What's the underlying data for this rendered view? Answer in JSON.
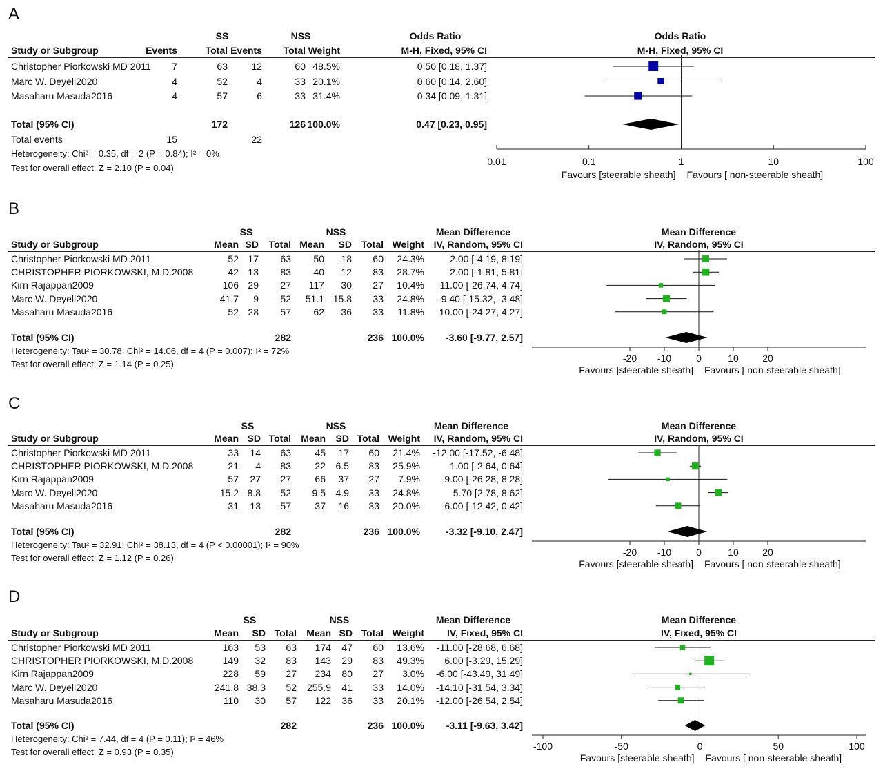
{
  "chart_data": [
    {
      "panel": "A",
      "type": "forest",
      "measure": "odds-ratio",
      "scale": "log",
      "group_headers": {
        "ss": "SS",
        "nss": "NSS"
      },
      "columns": [
        "Study or Subgroup",
        "Events",
        "Total",
        "Events",
        "Total",
        "Weight"
      ],
      "effect_header": "Odds Ratio",
      "effect_method": "M-H, Fixed, 95% CI",
      "plot_header": "Odds Ratio",
      "plot_method": "M-H, Fixed, 95% CI",
      "studies": [
        {
          "name": "Christopher Piorkowski MD 2011",
          "cells": [
            "7",
            "63",
            "12",
            "60",
            "48.5%"
          ],
          "ci_text": "0.50 [0.18, 1.37]",
          "est": 0.5,
          "lo": 0.18,
          "hi": 1.37,
          "weight": 48.5
        },
        {
          "name": "Marc W. Deyell2020",
          "cells": [
            "4",
            "52",
            "4",
            "33",
            "20.1%"
          ],
          "ci_text": "0.60 [0.14, 2.60]",
          "est": 0.6,
          "lo": 0.14,
          "hi": 2.6,
          "weight": 20.1
        },
        {
          "name": "Masaharu Masuda2016",
          "cells": [
            "4",
            "57",
            "6",
            "33",
            "31.4%"
          ],
          "ci_text": "0.34 [0.09, 1.31]",
          "est": 0.34,
          "lo": 0.09,
          "hi": 1.31,
          "weight": 31.4
        }
      ],
      "total": {
        "label": "Total (95% CI)",
        "cells": [
          "",
          "172",
          "",
          "126",
          "100.0%"
        ],
        "ci_text": "0.47 [0.23, 0.95]",
        "est": 0.47,
        "lo": 0.23,
        "hi": 0.95
      },
      "total_events": {
        "label": "Total events",
        "ss": "15",
        "nss": "22"
      },
      "heterogeneity": "Heterogeneity: Chi² = 0.35, df = 2 (P = 0.84); I² = 0%",
      "overall_effect": "Test for overall effect: Z = 2.10 (P = 0.04)",
      "axis": {
        "ticks": [
          0.01,
          0.1,
          1,
          10,
          100
        ],
        "tick_labels": [
          "0.01",
          "0.1",
          "1",
          "10",
          "100"
        ],
        "xlim": [
          0.01,
          100
        ]
      },
      "favours_left": "Favours [steerable sheath]",
      "favours_right": "Favours [ non-steerable sheath]",
      "marker_color": "#0000a0"
    },
    {
      "panel": "B",
      "type": "forest",
      "measure": "mean-difference",
      "scale": "linear",
      "group_headers": {
        "ss": "SS",
        "nss": "NSS"
      },
      "columns": [
        "Study or Subgroup",
        "Mean",
        "SD",
        "Total",
        "Mean",
        "SD",
        "Total",
        "Weight"
      ],
      "effect_header": "Mean Difference",
      "effect_method": "IV, Random, 95% CI",
      "plot_header": "Mean Difference",
      "plot_method": "IV, Random, 95% CI",
      "studies": [
        {
          "name": "Christopher Piorkowski MD 2011",
          "cells": [
            "52",
            "17",
            "63",
            "50",
            "18",
            "60",
            "24.3%"
          ],
          "ci_text": "2.00 [-4.19, 8.19]",
          "est": 2.0,
          "lo": -4.19,
          "hi": 8.19,
          "weight": 24.3
        },
        {
          "name": "CHRISTOPHER PIORKOWSKI, M.D.2008",
          "cells": [
            "42",
            "13",
            "83",
            "40",
            "12",
            "83",
            "28.7%"
          ],
          "ci_text": "2.00 [-1.81, 5.81]",
          "est": 2.0,
          "lo": -1.81,
          "hi": 5.81,
          "weight": 28.7
        },
        {
          "name": "Kirn Rajappan2009",
          "cells": [
            "106",
            "29",
            "27",
            "117",
            "30",
            "27",
            "10.4%"
          ],
          "ci_text": "-11.00 [-26.74, 4.74]",
          "est": -11.0,
          "lo": -26.74,
          "hi": 4.74,
          "weight": 10.4
        },
        {
          "name": "Marc W. Deyell2020",
          "cells": [
            "41.7",
            "9",
            "52",
            "51.1",
            "15.8",
            "33",
            "24.8%"
          ],
          "ci_text": "-9.40 [-15.32, -3.48]",
          "est": -9.4,
          "lo": -15.32,
          "hi": -3.48,
          "weight": 24.8
        },
        {
          "name": "Masaharu Masuda2016",
          "cells": [
            "52",
            "28",
            "57",
            "62",
            "36",
            "33",
            "11.8%"
          ],
          "ci_text": "-10.00 [-24.27, 4.27]",
          "est": -10.0,
          "lo": -24.27,
          "hi": 4.27,
          "weight": 11.8
        }
      ],
      "total": {
        "label": "Total (95% CI)",
        "cells": [
          "",
          "",
          "282",
          "",
          "",
          "236",
          "100.0%"
        ],
        "ci_text": "-3.60 [-9.77, 2.57]",
        "est": -3.6,
        "lo": -9.77,
        "hi": 2.57
      },
      "heterogeneity": "Heterogeneity: Tau² = 30.78; Chi² = 14.06, df = 4 (P = 0.007); I² = 72%",
      "overall_effect": "Test for overall effect: Z = 1.14 (P = 0.25)",
      "axis": {
        "ticks": [
          -20,
          -10,
          0,
          10,
          20
        ],
        "tick_labels": [
          "-20",
          "-10",
          "0",
          "10",
          "20"
        ],
        "xlim": [
          -50,
          50
        ]
      },
      "favours_left": "Favours [steerable sheath]",
      "favours_right": "Favours [ non-steerable sheath]",
      "marker_color": "#22b022"
    },
    {
      "panel": "C",
      "type": "forest",
      "measure": "mean-difference",
      "scale": "linear",
      "group_headers": {
        "ss": "SS",
        "nss": "NSS"
      },
      "columns": [
        "Study or Subgroup",
        "Mean",
        "SD",
        "Total",
        "Mean",
        "SD",
        "Total",
        "Weight"
      ],
      "effect_header": "Mean Difference",
      "effect_method": "IV, Random, 95% CI",
      "plot_header": "Mean Difference",
      "plot_method": "IV, Random, 95% CI",
      "studies": [
        {
          "name": "Christopher Piorkowski MD 2011",
          "cells": [
            "33",
            "14",
            "63",
            "45",
            "17",
            "60",
            "21.4%"
          ],
          "ci_text": "-12.00 [-17.52, -6.48]",
          "est": -12.0,
          "lo": -17.52,
          "hi": -6.48,
          "weight": 21.4
        },
        {
          "name": "CHRISTOPHER PIORKOWSKI, M.D.2008",
          "cells": [
            "21",
            "4",
            "83",
            "22",
            "6.5",
            "83",
            "25.9%"
          ],
          "ci_text": "-1.00 [-2.64, 0.64]",
          "est": -1.0,
          "lo": -2.64,
          "hi": 0.64,
          "weight": 25.9
        },
        {
          "name": "Kirn Rajappan2009",
          "cells": [
            "57",
            "27",
            "27",
            "66",
            "37",
            "27",
            "7.9%"
          ],
          "ci_text": "-9.00 [-26.28, 8.28]",
          "est": -9.0,
          "lo": -26.28,
          "hi": 8.28,
          "weight": 7.9
        },
        {
          "name": "Marc W. Deyell2020",
          "cells": [
            "15.2",
            "8.8",
            "52",
            "9.5",
            "4.9",
            "33",
            "24.8%"
          ],
          "ci_text": "5.70 [2.78, 8.62]",
          "est": 5.7,
          "lo": 2.78,
          "hi": 8.62,
          "weight": 24.8
        },
        {
          "name": "Masaharu Masuda2016",
          "cells": [
            "31",
            "13",
            "57",
            "37",
            "16",
            "33",
            "20.0%"
          ],
          "ci_text": "-6.00 [-12.42, 0.42]",
          "est": -6.0,
          "lo": -12.42,
          "hi": 0.42,
          "weight": 20.0
        }
      ],
      "total": {
        "label": "Total (95% CI)",
        "cells": [
          "",
          "",
          "282",
          "",
          "",
          "236",
          "100.0%"
        ],
        "ci_text": "-3.32 [-9.10, 2.47]",
        "est": -3.32,
        "lo": -9.1,
        "hi": 2.47
      },
      "heterogeneity": "Heterogeneity: Tau² = 32.91; Chi² = 38.13, df = 4 (P < 0.00001); I² = 90%",
      "overall_effect": "Test for overall effect: Z = 1.12 (P = 0.26)",
      "axis": {
        "ticks": [
          -20,
          -10,
          0,
          10,
          20
        ],
        "tick_labels": [
          "-20",
          "-10",
          "0",
          "10",
          "20"
        ],
        "xlim": [
          -50,
          50
        ]
      },
      "favours_left": "Favours [steerable sheath]",
      "favours_right": "Favours [ non-steerable sheath]",
      "marker_color": "#22b022"
    },
    {
      "panel": "D",
      "type": "forest",
      "measure": "mean-difference",
      "scale": "linear",
      "group_headers": {
        "ss": "SS",
        "nss": "NSS"
      },
      "columns": [
        "Study or Subgroup",
        "Mean",
        "SD",
        "Total",
        "Mean",
        "SD",
        "Total",
        "Weight"
      ],
      "effect_header": "Mean Difference",
      "effect_method": "IV, Fixed, 95% CI",
      "plot_header": "Mean Difference",
      "plot_method": "IV, Fixed, 95% CI",
      "studies": [
        {
          "name": "Christopher Piorkowski MD 2011",
          "cells": [
            "163",
            "53",
            "63",
            "174",
            "47",
            "60",
            "13.6%"
          ],
          "ci_text": "-11.00 [-28.68, 6.68]",
          "est": -11.0,
          "lo": -28.68,
          "hi": 6.68,
          "weight": 13.6
        },
        {
          "name": "CHRISTOPHER PIORKOWSKI, M.D.2008",
          "cells": [
            "149",
            "32",
            "83",
            "143",
            "29",
            "83",
            "49.3%"
          ],
          "ci_text": "6.00 [-3.29, 15.29]",
          "est": 6.0,
          "lo": -3.29,
          "hi": 15.29,
          "weight": 49.3
        },
        {
          "name": "Kirn Rajappan2009",
          "cells": [
            "228",
            "59",
            "27",
            "234",
            "80",
            "27",
            "3.0%"
          ],
          "ci_text": "-6.00 [-43.49, 31.49]",
          "est": -6.0,
          "lo": -43.49,
          "hi": 31.49,
          "weight": 3.0
        },
        {
          "name": "Marc W. Deyell2020",
          "cells": [
            "241.8",
            "38.3",
            "52",
            "255.9",
            "41",
            "33",
            "14.0%"
          ],
          "ci_text": "-14.10 [-31.54, 3.34]",
          "est": -14.1,
          "lo": -31.54,
          "hi": 3.34,
          "weight": 14.0
        },
        {
          "name": "Masaharu Masuda2016",
          "cells": [
            "110",
            "30",
            "57",
            "122",
            "36",
            "33",
            "20.1%"
          ],
          "ci_text": "-12.00 [-26.54, 2.54]",
          "est": -12.0,
          "lo": -26.54,
          "hi": 2.54,
          "weight": 20.1
        }
      ],
      "total": {
        "label": "Total (95% CI)",
        "cells": [
          "",
          "",
          "282",
          "",
          "",
          "236",
          "100.0%"
        ],
        "ci_text": "-3.11 [-9.63, 3.42]",
        "est": -3.11,
        "lo": -9.63,
        "hi": 3.42
      },
      "heterogeneity": "Heterogeneity: Chi² = 7.44, df = 4 (P = 0.11); I² = 46%",
      "overall_effect": "Test for overall effect: Z = 0.93 (P = 0.35)",
      "axis": {
        "ticks": [
          -100,
          -50,
          0,
          50,
          100
        ],
        "tick_labels": [
          "-100",
          "-50",
          "0",
          "50",
          "100"
        ],
        "xlim": [
          -100,
          100
        ]
      },
      "favours_left": "Favours [steerable sheath]",
      "favours_right": "Favours [ non-steerable sheath]",
      "marker_color": "#22b022"
    }
  ]
}
